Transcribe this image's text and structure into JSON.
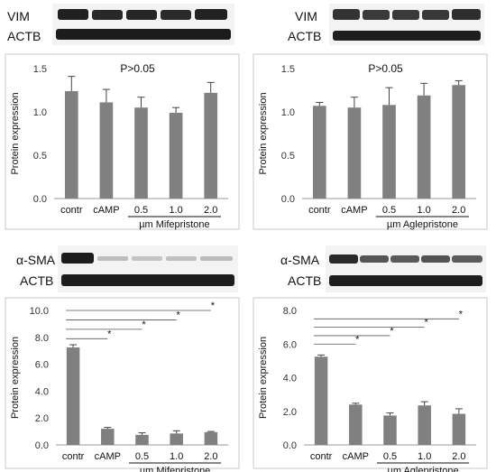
{
  "chart_data": [
    {
      "type": "bar",
      "panel": "top-left",
      "blot_labels": [
        "VIM",
        "ACTB"
      ],
      "categories": [
        "contr",
        "cAMP",
        "0.5",
        "1.0",
        "2.0"
      ],
      "values": [
        1.24,
        1.11,
        1.05,
        0.99,
        1.22
      ],
      "errors": [
        0.17,
        0.15,
        0.12,
        0.06,
        0.12
      ],
      "ylabel": "Protein expression",
      "xlabel": "µm Mifepristone",
      "ylim": [
        0,
        1.5
      ],
      "yticks": [
        "0.0",
        "0.5",
        "1.0",
        "1.5"
      ],
      "annotation": "P>0.05",
      "significance": [],
      "bar_color": "#808080"
    },
    {
      "type": "bar",
      "panel": "top-right",
      "blot_labels": [
        "VIM",
        "ACTB"
      ],
      "categories": [
        "contr",
        "cAMP",
        "0.5",
        "1.0",
        "2.0"
      ],
      "values": [
        1.07,
        1.05,
        1.08,
        1.19,
        1.31
      ],
      "errors": [
        0.04,
        0.12,
        0.2,
        0.14,
        0.05
      ],
      "ylabel": "Protein expression",
      "xlabel": "µm Aglepristone",
      "ylim": [
        0,
        1.5
      ],
      "yticks": [
        "0.0",
        "0.5",
        "1.0",
        "1.5"
      ],
      "annotation": "P>0.05",
      "significance": [],
      "bar_color": "#808080"
    },
    {
      "type": "bar",
      "panel": "bottom-left",
      "blot_labels": [
        "α-SMA",
        "ACTB"
      ],
      "categories": [
        "contr",
        "cAMP",
        "0.5",
        "1.0",
        "2.0"
      ],
      "values": [
        7.25,
        1.2,
        0.75,
        0.85,
        0.95
      ],
      "errors": [
        0.2,
        0.1,
        0.15,
        0.2,
        0.05
      ],
      "ylabel": "Protein expression",
      "xlabel": "µm Mifepristone",
      "ylim": [
        0,
        10
      ],
      "yticks": [
        "0.0",
        "2.0",
        "4.0",
        "6.0",
        "8.0",
        "10.0"
      ],
      "annotation": "",
      "significance": [
        {
          "from": 0,
          "to": 1,
          "y": 7.9,
          "mark": "*"
        },
        {
          "from": 0,
          "to": 2,
          "y": 8.6,
          "mark": "*"
        },
        {
          "from": 0,
          "to": 3,
          "y": 9.3,
          "mark": "*"
        },
        {
          "from": 0,
          "to": 4,
          "y": 10.0,
          "mark": "*"
        }
      ],
      "bar_color": "#808080"
    },
    {
      "type": "bar",
      "panel": "bottom-right",
      "blot_labels": [
        "α-SMA",
        "ACTB"
      ],
      "categories": [
        "contr",
        "cAMP",
        "0.5",
        "1.0",
        "2.0"
      ],
      "values": [
        5.25,
        2.4,
        1.75,
        2.35,
        1.85
      ],
      "errors": [
        0.1,
        0.08,
        0.15,
        0.22,
        0.3
      ],
      "ylabel": "Protein expression",
      "xlabel": "µm Aglepristone",
      "ylim": [
        0,
        8
      ],
      "yticks": [
        "0.0",
        "2.0",
        "4.0",
        "6.0",
        "8.0"
      ],
      "annotation": "",
      "significance": [
        {
          "from": 0,
          "to": 1,
          "y": 6.0,
          "mark": "*"
        },
        {
          "from": 0,
          "to": 2,
          "y": 6.5,
          "mark": "*"
        },
        {
          "from": 0,
          "to": 3,
          "y": 7.0,
          "mark": "*"
        },
        {
          "from": 0,
          "to": 4,
          "y": 7.5,
          "mark": "*"
        }
      ],
      "bar_color": "#808080"
    }
  ]
}
